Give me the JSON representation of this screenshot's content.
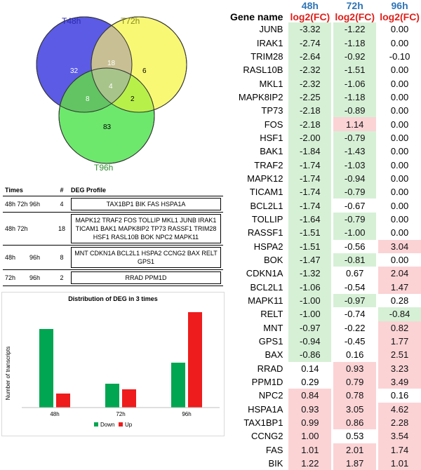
{
  "venn": {
    "sets": [
      {
        "label": "T48h",
        "color": "#5b5be6",
        "label_color": "#2a2ab0"
      },
      {
        "label": "T72h",
        "color": "#f7f766",
        "label_color": "#8a8a20"
      },
      {
        "label": "T96h",
        "color": "#5de65d",
        "label_color": "#2f8f2f"
      }
    ],
    "regions": {
      "only_48": "32",
      "only_72": "6",
      "only_96": "83",
      "48_72": "18",
      "48_96": "8",
      "72_96": "2",
      "all": "4"
    }
  },
  "deg_table": {
    "headers": [
      "Times",
      "#",
      "DEG Profile"
    ],
    "rows": [
      {
        "times": "48h 72h 96h",
        "count": "4",
        "profile": "TAX1BP1 BIK FAS HSPA1A"
      },
      {
        "times": "48h 72h",
        "count": "18",
        "profile": "MAPK12 TRAF2 FOS TOLLIP MKL1 JUNB IRAK1 TICAM1 BAK1 MAPK8IP2 TP73 RASSF1 TRIM28 HSF1 RASL10B BOK NPC2 MAPK11"
      },
      {
        "times": "48h        96h",
        "count": "8",
        "profile": "MNT CDKN1A BCL2L1 HSPA2 CCNG2 BAX RELT GPS1"
      },
      {
        "times": "72h        96h",
        "count": "2",
        "profile": "RRAD PPM1D"
      }
    ]
  },
  "chart_data": {
    "type": "bar",
    "title": "Distribution of DEG in 3 times",
    "xlabel": "",
    "ylabel": "Number of transcripts",
    "categories": [
      "48h",
      "72h",
      "96h"
    ],
    "series": [
      {
        "name": "Down",
        "color": "#00a651",
        "values": [
          56,
          17,
          32
        ]
      },
      {
        "name": "Up",
        "color": "#ee1c1c",
        "values": [
          10,
          13,
          68
        ]
      }
    ],
    "ylim": [
      0,
      70
    ],
    "legend": "bottom"
  },
  "fc_table": {
    "times": [
      "48h",
      "72h",
      "96h"
    ],
    "gene_header": "Gene name",
    "fc_header": "log2(FC)",
    "rows": [
      {
        "gene": "JUNB",
        "v": [
          "-3.32",
          "-1.22",
          "0.00"
        ]
      },
      {
        "gene": "IRAK1",
        "v": [
          "-2.74",
          "-1.18",
          "0.00"
        ]
      },
      {
        "gene": "TRIM28",
        "v": [
          "-2.64",
          "-0.92",
          "-0.10"
        ]
      },
      {
        "gene": "RASL10B",
        "v": [
          "-2.32",
          "-1.51",
          "0.00"
        ]
      },
      {
        "gene": "MKL1",
        "v": [
          "-2.32",
          "-1.06",
          "0.00"
        ]
      },
      {
        "gene": "MAPK8IP2",
        "v": [
          "-2.25",
          "-1.18",
          "0.00"
        ]
      },
      {
        "gene": "TP73",
        "v": [
          "-2.18",
          "-0.89",
          "0.00"
        ]
      },
      {
        "gene": "FOS",
        "v": [
          "-2.18",
          "1.14",
          "0.00"
        ]
      },
      {
        "gene": "HSF1",
        "v": [
          "-2.00",
          "-0.79",
          "0.00"
        ]
      },
      {
        "gene": "BAK1",
        "v": [
          "-1.84",
          "-1.43",
          "0.00"
        ]
      },
      {
        "gene": "TRAF2",
        "v": [
          "-1.74",
          "-1.03",
          "0.00"
        ]
      },
      {
        "gene": "MAPK12",
        "v": [
          "-1.74",
          "-0.94",
          "0.00"
        ]
      },
      {
        "gene": "TICAM1",
        "v": [
          "-1.74",
          "-0.79",
          "0.00"
        ]
      },
      {
        "gene": "BCL2L1",
        "v": [
          "-1.74",
          "-0.67",
          "0.00"
        ]
      },
      {
        "gene": "TOLLIP",
        "v": [
          "-1.64",
          "-0.79",
          "0.00"
        ]
      },
      {
        "gene": "RASSF1",
        "v": [
          "-1.51",
          "-1.00",
          "0.00"
        ]
      },
      {
        "gene": "HSPA2",
        "v": [
          "-1.51",
          "-0.56",
          "3.04"
        ]
      },
      {
        "gene": "BOK",
        "v": [
          "-1.47",
          "-0.81",
          "0.00"
        ]
      },
      {
        "gene": "CDKN1A",
        "v": [
          "-1.32",
          "0.67",
          "2.04"
        ]
      },
      {
        "gene": "BCL2L1",
        "v": [
          "-1.06",
          "-0.54",
          "1.47"
        ]
      },
      {
        "gene": "MAPK11",
        "v": [
          "-1.00",
          "-0.97",
          "0.28"
        ]
      },
      {
        "gene": "RELT",
        "v": [
          "-1.00",
          "-0.74",
          "-0.84"
        ]
      },
      {
        "gene": "MNT",
        "v": [
          "-0.97",
          "-0.22",
          "0.82"
        ]
      },
      {
        "gene": "GPS1",
        "v": [
          "-0.94",
          "-0.45",
          "1.77"
        ]
      },
      {
        "gene": "BAX",
        "v": [
          "-0.86",
          "0.16",
          "2.51"
        ]
      },
      {
        "gene": "RRAD",
        "v": [
          "0.14",
          "0.93",
          "3.23"
        ]
      },
      {
        "gene": "PPM1D",
        "v": [
          "0.29",
          "0.79",
          "3.49"
        ]
      },
      {
        "gene": "NPC2",
        "v": [
          "0.84",
          "0.78",
          "0.16"
        ]
      },
      {
        "gene": "HSPA1A",
        "v": [
          "0.93",
          "3.05",
          "4.62"
        ]
      },
      {
        "gene": "TAX1BP1",
        "v": [
          "0.99",
          "0.86",
          "2.28"
        ]
      },
      {
        "gene": "CCNG2",
        "v": [
          "1.00",
          "0.53",
          "3.54"
        ]
      },
      {
        "gene": "FAS",
        "v": [
          "1.01",
          "2.01",
          "1.74"
        ]
      },
      {
        "gene": "BIK",
        "v": [
          "1.22",
          "1.87",
          "1.01"
        ]
      }
    ],
    "cell_class": [
      [
        "neg",
        "neg",
        "zero"
      ],
      [
        "neg",
        "neg",
        "zero"
      ],
      [
        "neg",
        "neg",
        "zero"
      ],
      [
        "neg",
        "neg",
        "zero"
      ],
      [
        "neg",
        "neg",
        "zero"
      ],
      [
        "neg",
        "neg",
        "zero"
      ],
      [
        "neg",
        "neg",
        "zero"
      ],
      [
        "neg",
        "pos",
        "zero"
      ],
      [
        "neg",
        "neg",
        "zero"
      ],
      [
        "neg",
        "neg",
        "zero"
      ],
      [
        "neg",
        "neg",
        "zero"
      ],
      [
        "neg",
        "neg",
        "zero"
      ],
      [
        "neg",
        "neg",
        "zero"
      ],
      [
        "neg",
        "zero",
        "zero"
      ],
      [
        "neg",
        "neg",
        "zero"
      ],
      [
        "neg",
        "neg",
        "zero"
      ],
      [
        "neg",
        "zero",
        "pos"
      ],
      [
        "neg",
        "neg",
        "zero"
      ],
      [
        "neg",
        "zero",
        "pos"
      ],
      [
        "neg",
        "zero",
        "pos"
      ],
      [
        "neg",
        "neg",
        "zero"
      ],
      [
        "neg",
        "zero",
        "neg"
      ],
      [
        "neg",
        "zero",
        "pos"
      ],
      [
        "neg",
        "zero",
        "pos"
      ],
      [
        "neg",
        "zero",
        "pos"
      ],
      [
        "zero",
        "pos",
        "pos"
      ],
      [
        "zero",
        "pos",
        "pos"
      ],
      [
        "pos",
        "pos",
        "zero"
      ],
      [
        "pos",
        "pos",
        "pos"
      ],
      [
        "pos",
        "pos",
        "pos"
      ],
      [
        "pos",
        "zero",
        "pos"
      ],
      [
        "pos",
        "pos",
        "pos"
      ],
      [
        "pos",
        "pos",
        "pos"
      ]
    ]
  }
}
